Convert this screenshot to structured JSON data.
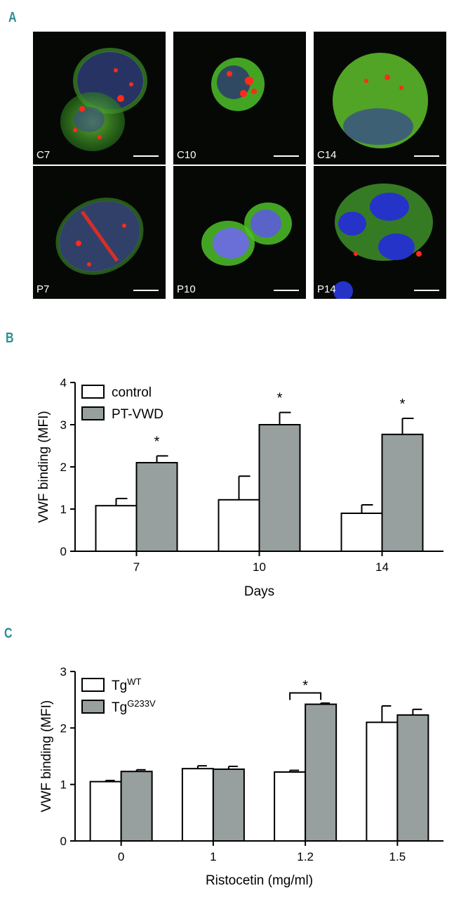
{
  "panels": {
    "a": {
      "letter": "A"
    },
    "b": {
      "letter": "B"
    },
    "c": {
      "letter": "C"
    }
  },
  "colors": {
    "panel_letter": "#2a8f8f",
    "control_bar": "#ffffff",
    "treated_bar": "#979f9f",
    "axis": "#000000",
    "fluor_green": "#4fbf2a",
    "fluor_red": "#ff2a1a",
    "fluor_blue": "#2533c9"
  },
  "micrographs": [
    {
      "label": "C7",
      "icon": "micrograph-two-cells"
    },
    {
      "label": "C10",
      "icon": "micrograph-single-cell"
    },
    {
      "label": "C14",
      "icon": "micrograph-large-cell"
    },
    {
      "label": "P7",
      "icon": "micrograph-two-cells"
    },
    {
      "label": "P10",
      "icon": "micrograph-two-cells-blue-nuclei"
    },
    {
      "label": "P14",
      "icon": "micrograph-cluster-blue-nuclei"
    }
  ],
  "chart_data": [
    {
      "type": "bar",
      "title": "",
      "xlabel": "Days",
      "ylabel": "VWF binding (MFI)",
      "categories": [
        "7",
        "10",
        "14"
      ],
      "ylim": [
        0,
        4
      ],
      "yticks": [
        "0",
        "1",
        "2",
        "3",
        "4"
      ],
      "series": [
        {
          "name": "control",
          "values": [
            1.08,
            1.22,
            0.9
          ],
          "errors": [
            0.17,
            0.56,
            0.2
          ]
        },
        {
          "name": "PT-VWD",
          "values": [
            2.1,
            3.0,
            2.77
          ],
          "errors": [
            0.16,
            0.29,
            0.38
          ]
        }
      ],
      "annotations": [
        "*",
        "*",
        "*"
      ],
      "legend": "top-left",
      "grid": false
    },
    {
      "type": "bar",
      "title": "",
      "xlabel": "Ristocetin (mg/ml)",
      "ylabel": "VWF binding (MFI)",
      "categories": [
        "0",
        "1",
        "1.2",
        "1.5"
      ],
      "ylim": [
        0,
        3
      ],
      "yticks": [
        "0",
        "1",
        "2",
        "3"
      ],
      "series": [
        {
          "name": "Tg",
          "superscript": "WT",
          "values": [
            1.05,
            1.28,
            1.22,
            2.1
          ],
          "errors": [
            0.02,
            0.05,
            0.03,
            0.29
          ]
        },
        {
          "name": "Tg",
          "superscript": "G233V",
          "values": [
            1.23,
            1.27,
            2.42,
            2.23
          ],
          "errors": [
            0.03,
            0.05,
            0.02,
            0.1
          ]
        }
      ],
      "annotations": [
        "*"
      ],
      "significance_category": "1.2",
      "legend": "top-left",
      "grid": false
    }
  ]
}
